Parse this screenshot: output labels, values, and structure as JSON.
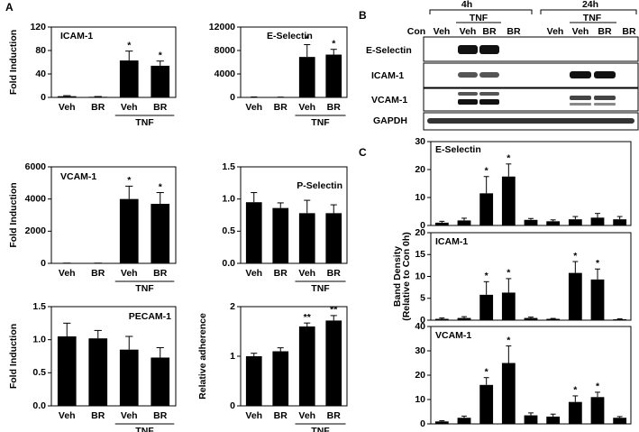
{
  "panel_labels": [
    "A",
    "B",
    "C"
  ],
  "blot": {
    "time_labels": [
      "4h",
      "24h"
    ],
    "treatment_labels": [
      "TNF",
      "TNF"
    ],
    "lanes": [
      "Con",
      "Veh",
      "Veh",
      "BR",
      "BR",
      "Veh",
      "Veh",
      "BR",
      "BR"
    ],
    "rows": [
      "E-Selectin",
      "ICAM-1",
      "VCAM-1",
      "GAPDH"
    ]
  },
  "chart_data": [
    {
      "type": "bar",
      "title": "ICAM-1",
      "ylabel": "Fold Induction",
      "categories": [
        "Veh",
        "BR",
        "Veh",
        "BR"
      ],
      "group_label": "TNF",
      "values": [
        2,
        1,
        63,
        54
      ],
      "errors": [
        1,
        0.5,
        16,
        8
      ],
      "significance": [
        null,
        null,
        "*",
        "*"
      ],
      "color": "#000000",
      "ylim": [
        0,
        120
      ],
      "yticks": [
        0,
        40,
        80,
        120
      ]
    },
    {
      "type": "bar",
      "title": "E-Selectin",
      "categories": [
        "Veh",
        "BR",
        "Veh",
        "BR"
      ],
      "group_label": "TNF",
      "values": [
        50,
        30,
        6900,
        7300
      ],
      "errors": [
        30,
        20,
        2100,
        900
      ],
      "significance": [
        null,
        null,
        "*",
        "*"
      ],
      "color": "#000000",
      "ylim": [
        0,
        12000
      ],
      "yticks": [
        0,
        4000,
        8000,
        12000
      ]
    },
    {
      "type": "bar",
      "title": "VCAM-1",
      "ylabel": "Fold Induction",
      "categories": [
        "Veh",
        "BR",
        "Veh",
        "BR"
      ],
      "group_label": "TNF",
      "values": [
        10,
        10,
        4000,
        3700
      ],
      "errors": [
        5,
        5,
        800,
        700
      ],
      "significance": [
        null,
        null,
        "*",
        "*"
      ],
      "color": "#000000",
      "ylim": [
        0,
        6000
      ],
      "yticks": [
        0,
        2000,
        4000,
        6000
      ]
    },
    {
      "type": "bar",
      "title": "P-Selectin",
      "categories": [
        "Veh",
        "BR",
        "Veh",
        "BR"
      ],
      "group_label": "TNF",
      "values": [
        0.95,
        0.86,
        0.78,
        0.78
      ],
      "errors": [
        0.15,
        0.08,
        0.2,
        0.13
      ],
      "color": "#000000",
      "ylim": [
        0,
        1.5
      ],
      "yticks": [
        {
          "value": 0,
          "label": "0.0"
        },
        0.5,
        {
          "value": 1,
          "label": "1.0"
        },
        1.5
      ]
    },
    {
      "type": "bar",
      "title": "PECAM-1",
      "ylabel": "Fold Induction",
      "categories": [
        "Veh",
        "BR",
        "Veh",
        "BR"
      ],
      "group_label": "TNF",
      "values": [
        1.05,
        1.02,
        0.85,
        0.73
      ],
      "errors": [
        0.2,
        0.12,
        0.2,
        0.15
      ],
      "color": "#000000",
      "ylim": [
        0,
        1.5
      ],
      "yticks": [
        {
          "value": 0,
          "label": "0.0"
        },
        0.5,
        {
          "value": 1,
          "label": "1.0"
        },
        1.5
      ]
    },
    {
      "type": "bar",
      "ylabel": "Relative adherence",
      "categories": [
        "Veh",
        "BR",
        "Veh",
        "BR"
      ],
      "group_label": "TNF",
      "values": [
        1.0,
        1.1,
        1.6,
        1.72
      ],
      "errors": [
        0.06,
        0.07,
        0.07,
        0.1
      ],
      "significance": [
        null,
        null,
        "**",
        "**"
      ],
      "color": "#000000",
      "ylim": [
        0,
        2
      ],
      "yticks": [
        0,
        1,
        2
      ]
    },
    {
      "type": "bar",
      "title": "E-Selectin",
      "categories": [
        null,
        null,
        null,
        null,
        null,
        null,
        null,
        null,
        null
      ],
      "values": [
        1,
        1.8,
        11.5,
        17.5,
        2,
        1.5,
        2.2,
        2.8,
        2.2
      ],
      "errors": [
        0.5,
        0.8,
        6,
        4.5,
        0.5,
        0.5,
        1,
        1.5,
        1
      ],
      "significance": [
        null,
        null,
        "*",
        "*",
        null,
        null,
        null,
        null,
        null
      ],
      "color": "#000000",
      "ylim": [
        0,
        30
      ],
      "yticks": [
        0,
        10,
        20,
        30
      ]
    },
    {
      "type": "bar",
      "title": "ICAM-1",
      "ylabel": [
        "Band Density",
        "(Relative to Con 0h)"
      ],
      "categories": [
        null,
        null,
        null,
        null,
        null,
        null,
        null,
        null,
        null
      ],
      "values": [
        0.3,
        0.5,
        5.8,
        6.3,
        0.5,
        0.3,
        10.8,
        9.3,
        0.2
      ],
      "errors": [
        0.2,
        0.3,
        3,
        3.2,
        0.2,
        0.1,
        2.6,
        2.4,
        0.1
      ],
      "significance": [
        null,
        null,
        "*",
        "*",
        null,
        null,
        "*",
        "*",
        null
      ],
      "color": "#000000",
      "ylim": [
        0,
        20
      ],
      "yticks": [
        0,
        5,
        10,
        15,
        20
      ]
    },
    {
      "type": "bar",
      "title": "VCAM-1",
      "categories": [
        null,
        null,
        null,
        null,
        null,
        null,
        null,
        null,
        null
      ],
      "values": [
        1,
        2.5,
        16,
        25,
        3.5,
        3,
        9,
        11,
        2.5
      ],
      "errors": [
        0.3,
        0.7,
        3,
        7,
        1,
        1,
        2.5,
        2,
        0.5
      ],
      "significance": [
        null,
        null,
        "*",
        "*",
        null,
        null,
        "*",
        "*",
        null
      ],
      "color": "#000000",
      "ylim": [
        0,
        40
      ],
      "yticks": [
        0,
        10,
        20,
        30,
        40
      ]
    }
  ]
}
